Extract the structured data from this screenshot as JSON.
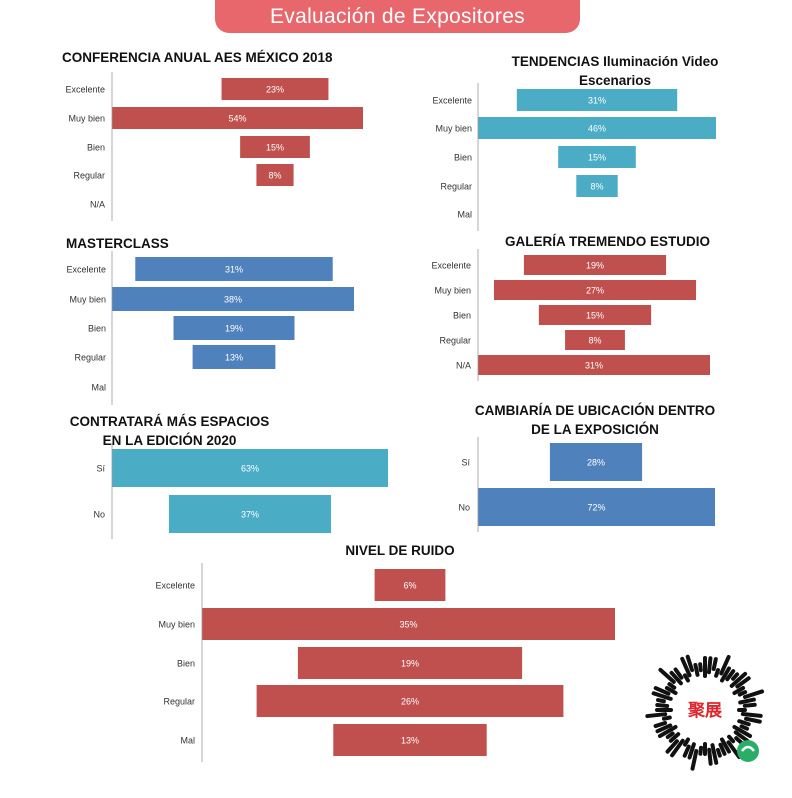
{
  "banner": {
    "title": "Evaluación de Expositores"
  },
  "colors": {
    "red": "#c0504d",
    "teal": "#4bacc6",
    "blue": "#4f81bd",
    "banner": "#e8676c"
  },
  "qr": {
    "label": "聚展",
    "mark": "wechat-mini-program-code"
  },
  "chart_data": [
    {
      "type": "bar",
      "orientation": "funnel",
      "title_lines": [
        "CONFERENCIA ANUAL AES  MÉXICO 2018"
      ],
      "categories": [
        "Excelente",
        "Muy bien",
        "Bien",
        "Regular",
        "N/A"
      ],
      "values": [
        23,
        54,
        15,
        8,
        null
      ],
      "labels": [
        "23%",
        "54%",
        "15%",
        "8%",
        ""
      ],
      "color": "#c0504d",
      "unit": "%"
    },
    {
      "type": "bar",
      "orientation": "funnel",
      "title_lines": [
        "TENDENCIAS Iluminación Video",
        "Escenarios"
      ],
      "categories": [
        "Excelente",
        "Muy bien",
        "Bien",
        "Regular",
        "Mal"
      ],
      "values": [
        31,
        46,
        15,
        8,
        null
      ],
      "labels": [
        "31%",
        "46%",
        "15%",
        "8%",
        ""
      ],
      "color": "#4bacc6",
      "unit": "%"
    },
    {
      "type": "bar",
      "orientation": "funnel",
      "title_lines": [
        "MASTERCLASS"
      ],
      "categories": [
        "Excelente",
        "Muy bien",
        "Bien",
        "Regular",
        "Mal"
      ],
      "values": [
        31,
        38,
        19,
        13,
        null
      ],
      "labels": [
        "31%",
        "38%",
        "19%",
        "13%",
        ""
      ],
      "color": "#4f81bd",
      "unit": "%"
    },
    {
      "type": "bar",
      "orientation": "funnel",
      "title_lines": [
        "GALERÍA TREMENDO ESTUDIO"
      ],
      "categories": [
        "Excelente",
        "Muy bien",
        "Bien",
        "Regular",
        "N/A"
      ],
      "values": [
        19,
        27,
        15,
        8,
        31
      ],
      "labels": [
        "19%",
        "27%",
        "15%",
        "8%",
        "31%"
      ],
      "color": "#c0504d",
      "unit": "%"
    },
    {
      "type": "bar",
      "orientation": "funnel",
      "title_lines": [
        "CONTRATARÁ MÁS ESPACIOS",
        "EN LA EDICIÓN 2020"
      ],
      "categories": [
        "Sí",
        "No"
      ],
      "values": [
        63,
        37
      ],
      "labels": [
        "63%",
        "37%"
      ],
      "color": "#4bacc6",
      "unit": "%"
    },
    {
      "type": "bar",
      "orientation": "funnel",
      "title_lines": [
        "CAMBIARÍA DE UBICACIÓN DENTRO",
        "DE LA EXPOSICIÓN"
      ],
      "categories": [
        "Sí",
        "No"
      ],
      "values": [
        28,
        72
      ],
      "labels": [
        "28%",
        "72%"
      ],
      "color": "#4f81bd",
      "unit": "%"
    },
    {
      "type": "bar",
      "orientation": "funnel",
      "title_lines": [
        "NIVEL DE RUIDO"
      ],
      "categories": [
        "Excelente",
        "Muy bien",
        "Bien",
        "Regular",
        "Mal"
      ],
      "values": [
        6,
        35,
        19,
        26,
        13
      ],
      "labels": [
        "6%",
        "35%",
        "19%",
        "26%",
        "13%"
      ],
      "color": "#c0504d",
      "unit": "%"
    }
  ]
}
